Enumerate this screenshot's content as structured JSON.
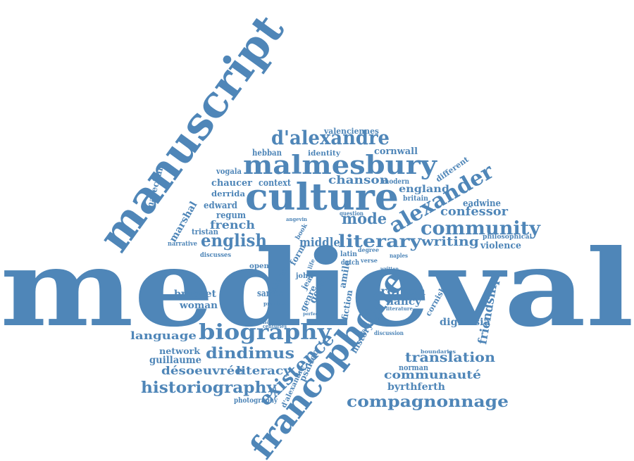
{
  "color": "#4f86b8",
  "words": [
    {
      "text": "medieval"
    },
    {
      "text": "manuscript"
    },
    {
      "text": "culture"
    },
    {
      "text": "malmesbury"
    },
    {
      "text": "francophone"
    },
    {
      "text": "alexander"
    },
    {
      "text": "biography"
    },
    {
      "text": "community"
    },
    {
      "text": "d'alexandre"
    },
    {
      "text": "literary"
    },
    {
      "text": "english"
    },
    {
      "text": "existence"
    },
    {
      "text": "historiography"
    },
    {
      "text": "compagnonnage"
    },
    {
      "text": "dindimus"
    },
    {
      "text": "translation"
    },
    {
      "text": "friendship"
    },
    {
      "text": "désoeuvrée"
    },
    {
      "text": "literacy"
    },
    {
      "text": "writing"
    },
    {
      "text": "mode"
    },
    {
      "text": "middle"
    },
    {
      "text": "french"
    },
    {
      "text": "confessor"
    },
    {
      "text": "roman"
    },
    {
      "text": "communauté"
    },
    {
      "text": "chanson"
    },
    {
      "text": "language"
    },
    {
      "text": "cornwall"
    },
    {
      "text": "england"
    },
    {
      "text": "marshal"
    },
    {
      "text": "marechal"
    },
    {
      "text": "valenciennes"
    },
    {
      "text": "hebban"
    },
    {
      "text": "vogala"
    },
    {
      "text": "identity"
    },
    {
      "text": "chaucer"
    },
    {
      "text": "context"
    },
    {
      "text": "modern"
    },
    {
      "text": "derrida"
    },
    {
      "text": "edward"
    },
    {
      "text": "regum"
    },
    {
      "text": "tristan"
    },
    {
      "text": "eadwine"
    },
    {
      "text": "different"
    },
    {
      "text": "britain"
    },
    {
      "text": "violence"
    },
    {
      "text": "philosophical"
    },
    {
      "text": "bracket"
    },
    {
      "text": "woman"
    },
    {
      "text": "nancy"
    },
    {
      "text": "cornish"
    },
    {
      "text": "diglossia"
    },
    {
      "text": "guillaume"
    },
    {
      "text": "network"
    },
    {
      "text": "norman"
    },
    {
      "text": "byrthferth"
    },
    {
      "text": "photography"
    },
    {
      "text": "d'alexandre"
    },
    {
      "text": "psalter"
    },
    {
      "text": "gesta"
    },
    {
      "text": "genre"
    },
    {
      "text": "latour"
    },
    {
      "text": "samen"
    },
    {
      "text": "history"
    },
    {
      "text": "fiction"
    },
    {
      "text": "amile"
    },
    {
      "text": "open"
    },
    {
      "text": "narrative"
    },
    {
      "text": "discusses"
    },
    {
      "text": "question"
    },
    {
      "text": "angevin"
    },
    {
      "text": "latin"
    },
    {
      "text": "dutch"
    },
    {
      "text": "form"
    },
    {
      "text": "john"
    },
    {
      "text": "jean"
    },
    {
      "text": "degree"
    },
    {
      "text": "verse"
    },
    {
      "text": "written"
    },
    {
      "text": "literature"
    },
    {
      "text": "discussion"
    },
    {
      "text": "boundaries"
    },
    {
      "text": "centuries"
    },
    {
      "text": "hainault"
    },
    {
      "text": "practice"
    },
    {
      "text": "naples"
    },
    {
      "text": "book"
    },
    {
      "text": "life"
    },
    {
      "text": "perfect"
    },
    {
      "text": "knowledge"
    }
  ]
}
